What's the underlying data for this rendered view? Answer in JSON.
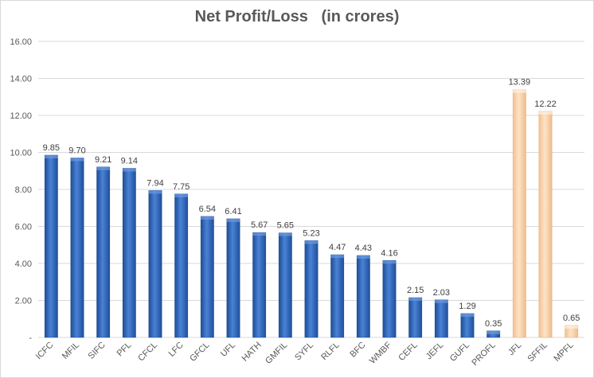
{
  "chart_data": {
    "type": "bar",
    "title": "Net Profit/Loss   (in crores)",
    "xlabel": "",
    "ylabel": "",
    "ylim": [
      0,
      16
    ],
    "yticks": [
      {
        "value": 0,
        "label": "-"
      },
      {
        "value": 2,
        "label": "2.00"
      },
      {
        "value": 4,
        "label": "4.00"
      },
      {
        "value": 6,
        "label": "6.00"
      },
      {
        "value": 8,
        "label": "8.00"
      },
      {
        "value": 10,
        "label": "10.00"
      },
      {
        "value": 12,
        "label": "12.00"
      },
      {
        "value": 14,
        "label": "14.00"
      },
      {
        "value": 16,
        "label": "16.00"
      }
    ],
    "grid": true,
    "legend": "none",
    "categories": [
      "ICFC",
      "MFIL",
      "SIFC",
      "PFL",
      "CFCL",
      "LFC",
      "GFCL",
      "UFL",
      "HATH",
      "GMFIL",
      "SYFL",
      "RLFL",
      "BFC",
      "WMBF",
      "CEFL",
      "JEFL",
      "GUFL",
      "PROFL",
      "JFL",
      "SFFIL",
      "MPFL"
    ],
    "values": [
      9.85,
      9.7,
      9.21,
      9.14,
      7.94,
      7.75,
      6.54,
      6.41,
      5.67,
      5.65,
      5.23,
      4.47,
      4.43,
      4.16,
      2.15,
      2.03,
      1.29,
      0.35,
      13.39,
      12.22,
      0.65
    ],
    "value_labels": [
      "9.85",
      "9.70",
      "9.21",
      "9.14",
      "7.94",
      "7.75",
      "6.54",
      "6.41",
      "5.67",
      "5.65",
      "5.23",
      "4.47",
      "4.43",
      "4.16",
      "2.15",
      "2.03",
      "1.29",
      "0.35",
      "13.39",
      "12.22",
      "0.65"
    ],
    "bar_colors": [
      "#2e64b8",
      "#2e64b8",
      "#2e64b8",
      "#2e64b8",
      "#2e64b8",
      "#2e64b8",
      "#2e64b8",
      "#2e64b8",
      "#2e64b8",
      "#2e64b8",
      "#2e64b8",
      "#2e64b8",
      "#2e64b8",
      "#2e64b8",
      "#2e64b8",
      "#2e64b8",
      "#2e64b8",
      "#2e64b8",
      "#f8cfa6",
      "#f8cfa6",
      "#f8cfa6"
    ],
    "colors": {
      "blue": "#2e64b8",
      "peach": "#f8cfa6",
      "grid": "#d9d9d9",
      "text": "#595959"
    }
  }
}
